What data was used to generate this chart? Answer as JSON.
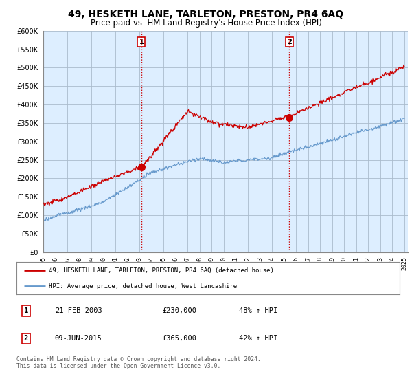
{
  "title": "49, HESKETH LANE, TARLETON, PRESTON, PR4 6AQ",
  "subtitle": "Price paid vs. HM Land Registry's House Price Index (HPI)",
  "x_start_year": 1995,
  "x_end_year": 2025,
  "y_min": 0,
  "y_max": 600000,
  "y_ticks": [
    0,
    50000,
    100000,
    150000,
    200000,
    250000,
    300000,
    350000,
    400000,
    450000,
    500000,
    550000,
    600000
  ],
  "sale1_year": 2003.15,
  "sale1_price": 230000,
  "sale1_label": "1",
  "sale2_year": 2015.44,
  "sale2_price": 365000,
  "sale2_label": "2",
  "line1_color": "#cc0000",
  "line2_color": "#6699cc",
  "marker_color": "#cc0000",
  "sale_marker_size": 7,
  "legend1_text": "49, HESKETH LANE, TARLETON, PRESTON, PR4 6AQ (detached house)",
  "legend2_text": "HPI: Average price, detached house, West Lancashire",
  "table_row1": [
    "1",
    "21-FEB-2003",
    "£230,000",
    "48% ↑ HPI"
  ],
  "table_row2": [
    "2",
    "09-JUN-2015",
    "£365,000",
    "42% ↑ HPI"
  ],
  "footnote": "Contains HM Land Registry data © Crown copyright and database right 2024.\nThis data is licensed under the Open Government Licence v3.0.",
  "vline_color": "#cc0000",
  "bg_color": "#ffffff",
  "chart_bg_color": "#ddeeff",
  "grid_color": "#aabbcc",
  "title_fontsize": 10,
  "subtitle_fontsize": 8.5,
  "axis_fontsize": 7
}
